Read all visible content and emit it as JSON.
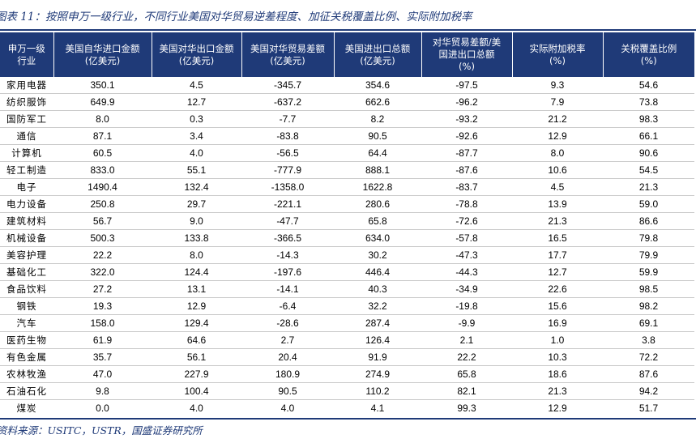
{
  "title": "图表 11：按照申万一级行业，不同行业美国对华贸易逆差程度、加征关税覆盖比例、实际附加税率",
  "source": "资料来源：USITC，USTR，国盛证券研究所",
  "headers": [
    "申万一级\n行业",
    "美国自华进口金额\n(亿美元)",
    "美国对华出口金额\n(亿美元)",
    "美国对华贸易差额\n(亿美元)",
    "美国进出口总额\n(亿美元)",
    "对华贸易差额/美\n国进出口总额\n(%)",
    "实际附加税率\n(%)",
    "关税覆盖比例\n(%)"
  ],
  "rows": [
    [
      "家用电器",
      "350.1",
      "4.5",
      "-345.7",
      "354.6",
      "-97.5",
      "9.3",
      "54.6"
    ],
    [
      "纺织服饰",
      "649.9",
      "12.7",
      "-637.2",
      "662.6",
      "-96.2",
      "7.9",
      "73.8"
    ],
    [
      "国防军工",
      "8.0",
      "0.3",
      "-7.7",
      "8.2",
      "-93.2",
      "21.2",
      "98.3"
    ],
    [
      "通信",
      "87.1",
      "3.4",
      "-83.8",
      "90.5",
      "-92.6",
      "12.9",
      "66.1"
    ],
    [
      "计算机",
      "60.5",
      "4.0",
      "-56.5",
      "64.4",
      "-87.7",
      "8.0",
      "90.6"
    ],
    [
      "轻工制造",
      "833.0",
      "55.1",
      "-777.9",
      "888.1",
      "-87.6",
      "10.6",
      "54.5"
    ],
    [
      "电子",
      "1490.4",
      "132.4",
      "-1358.0",
      "1622.8",
      "-83.7",
      "4.5",
      "21.3"
    ],
    [
      "电力设备",
      "250.8",
      "29.7",
      "-221.1",
      "280.6",
      "-78.8",
      "13.9",
      "59.0"
    ],
    [
      "建筑材料",
      "56.7",
      "9.0",
      "-47.7",
      "65.8",
      "-72.6",
      "21.3",
      "86.6"
    ],
    [
      "机械设备",
      "500.3",
      "133.8",
      "-366.5",
      "634.0",
      "-57.8",
      "16.5",
      "79.8"
    ],
    [
      "美容护理",
      "22.2",
      "8.0",
      "-14.3",
      "30.2",
      "-47.3",
      "17.7",
      "79.9"
    ],
    [
      "基础化工",
      "322.0",
      "124.4",
      "-197.6",
      "446.4",
      "-44.3",
      "12.7",
      "59.9"
    ],
    [
      "食品饮料",
      "27.2",
      "13.1",
      "-14.1",
      "40.3",
      "-34.9",
      "22.6",
      "98.5"
    ],
    [
      "钢铁",
      "19.3",
      "12.9",
      "-6.4",
      "32.2",
      "-19.8",
      "15.6",
      "98.2"
    ],
    [
      "汽车",
      "158.0",
      "129.4",
      "-28.6",
      "287.4",
      "-9.9",
      "16.9",
      "69.1"
    ],
    [
      "医药生物",
      "61.9",
      "64.6",
      "2.7",
      "126.4",
      "2.1",
      "1.0",
      "3.8"
    ],
    [
      "有色金属",
      "35.7",
      "56.1",
      "20.4",
      "91.9",
      "22.2",
      "10.3",
      "72.2"
    ],
    [
      "农林牧渔",
      "47.0",
      "227.9",
      "180.9",
      "274.9",
      "65.8",
      "18.6",
      "87.6"
    ],
    [
      "石油石化",
      "9.8",
      "100.4",
      "90.5",
      "110.2",
      "82.1",
      "21.3",
      "94.2"
    ],
    [
      "煤炭",
      "0.0",
      "4.0",
      "4.0",
      "4.1",
      "99.3",
      "12.9",
      "51.7"
    ]
  ],
  "colors": {
    "header_bg": "#1f3a78",
    "header_text": "#ffffff",
    "title_text": "#1f3a78",
    "row_rule": "#c9c9c9"
  }
}
